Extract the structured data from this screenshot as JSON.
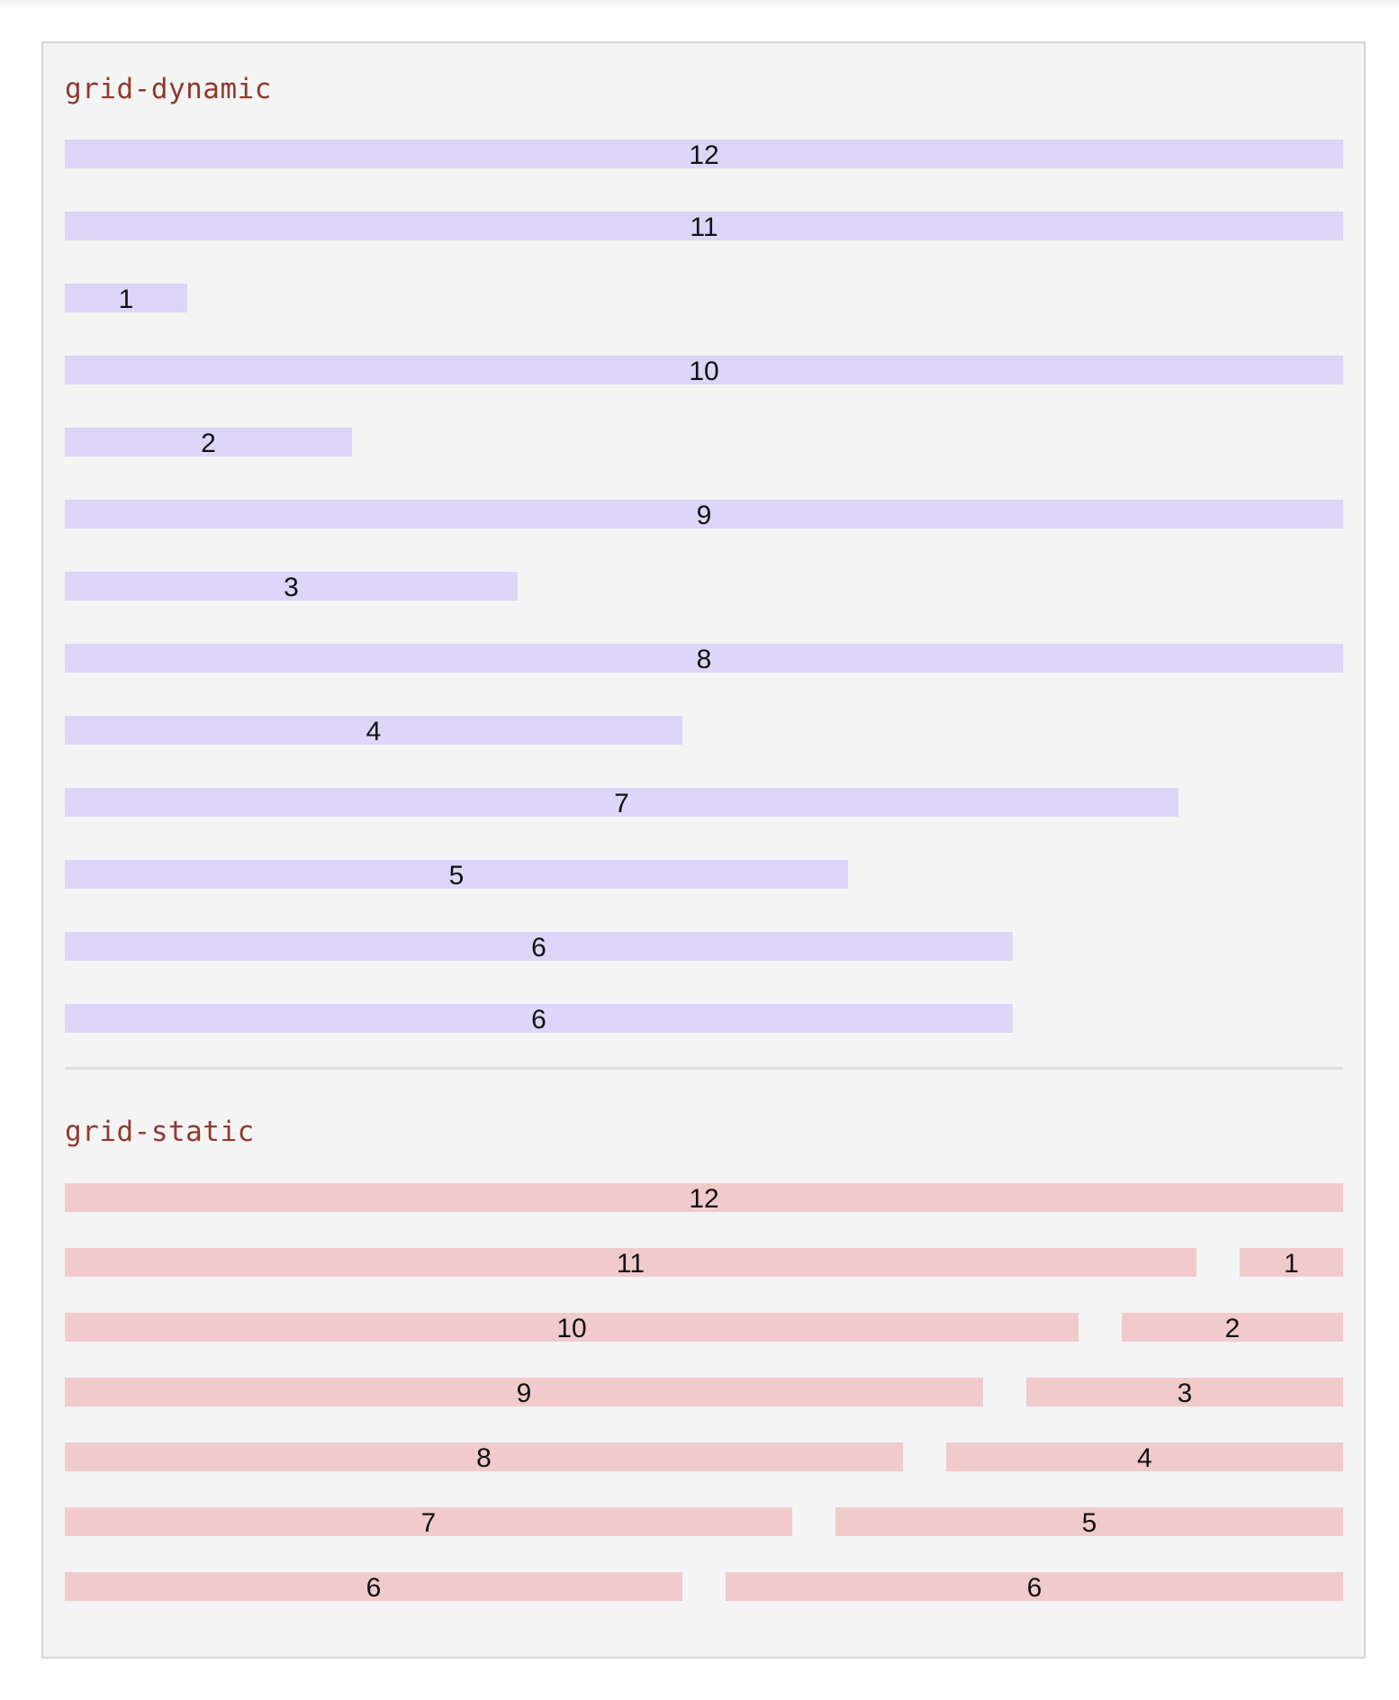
{
  "sections": {
    "dynamic": {
      "label": "grid-dynamic",
      "color": "#ddd6f8",
      "rows": [
        {
          "items": [
            {
              "label": "12",
              "span": 12
            }
          ]
        },
        {
          "items": [
            {
              "label": "11",
              "span": 11
            }
          ]
        },
        {
          "items": [
            {
              "label": "1",
              "span": 1
            }
          ]
        },
        {
          "items": [
            {
              "label": "10",
              "span": 10
            }
          ]
        },
        {
          "items": [
            {
              "label": "2",
              "span": 2
            }
          ]
        },
        {
          "items": [
            {
              "label": "9",
              "span": 9
            }
          ]
        },
        {
          "items": [
            {
              "label": "3",
              "span": 3
            }
          ]
        },
        {
          "items": [
            {
              "label": "8",
              "span": 8
            }
          ]
        },
        {
          "items": [
            {
              "label": "4",
              "span": 4
            }
          ]
        },
        {
          "items": [
            {
              "label": "7",
              "span": 7
            }
          ]
        },
        {
          "items": [
            {
              "label": "5",
              "span": 5
            }
          ]
        },
        {
          "items": [
            {
              "label": "6",
              "span": 6
            }
          ]
        },
        {
          "items": [
            {
              "label": "6",
              "span": 6
            }
          ]
        }
      ]
    },
    "static": {
      "label": "grid-static",
      "color": "#f1cbcc",
      "rows": [
        {
          "items": [
            {
              "label": "12",
              "span": 12
            }
          ]
        },
        {
          "items": [
            {
              "label": "11",
              "span": 11
            },
            {
              "label": "1",
              "span": 1
            }
          ]
        },
        {
          "items": [
            {
              "label": "10",
              "span": 10
            },
            {
              "label": "2",
              "span": 2
            }
          ]
        },
        {
          "items": [
            {
              "label": "9",
              "span": 9
            },
            {
              "label": "3",
              "span": 3
            }
          ]
        },
        {
          "items": [
            {
              "label": "8",
              "span": 8
            },
            {
              "label": "4",
              "span": 4
            }
          ]
        },
        {
          "items": [
            {
              "label": "7",
              "span": 7
            },
            {
              "label": "5",
              "span": 5
            }
          ]
        },
        {
          "items": [
            {
              "label": "6",
              "span": 6
            },
            {
              "label": "6",
              "span": 6
            }
          ]
        }
      ]
    }
  },
  "label_color": "#8f3a2e"
}
